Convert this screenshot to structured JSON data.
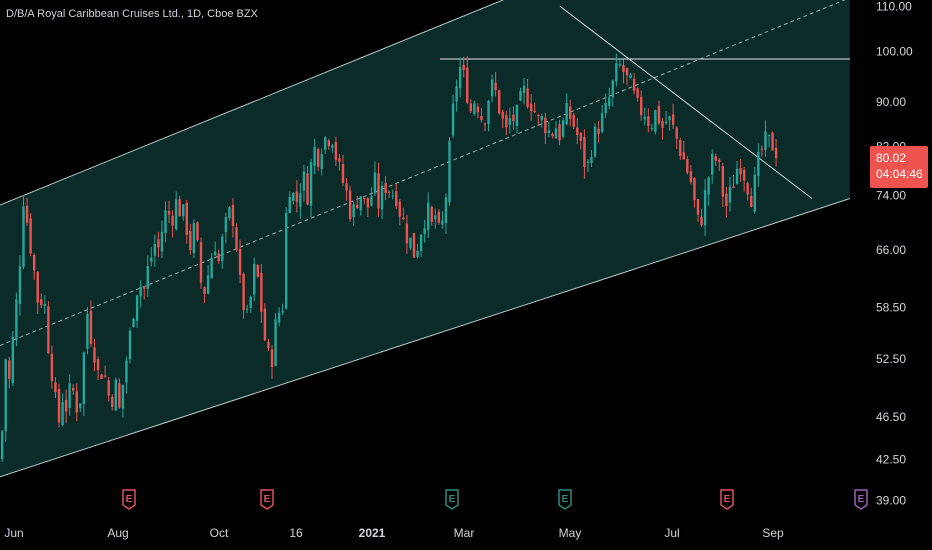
{
  "header": {
    "title": "D/B/A Royal Caribbean Cruises Ltd., 1D, Cboe BZX"
  },
  "price_label": {
    "value": "80.02",
    "countdown": "04:04:46"
  },
  "colors": {
    "up": "#26a69a",
    "down": "#ef5350",
    "channel_fill": "#0d3330",
    "channel_line": "#b2c9c6",
    "background": "#000000",
    "axis_text": "#d1d4dc",
    "earnings_red": "#e0535c",
    "earnings_teal": "#2a8a82",
    "earnings_purple": "#9b5fb6"
  },
  "chart_data": {
    "type": "candlestick",
    "title": "D/B/A Royal Caribbean Cruises Ltd., 1D, Cboe BZX",
    "y_scale": "log",
    "ylim": [
      38.4,
      111
    ],
    "y_ticks": [
      "110.00",
      "100.00",
      "90.00",
      "82.00",
      "74.00",
      "66.00",
      "58.50",
      "52.50",
      "46.50",
      "42.50",
      "39.00"
    ],
    "x_ticks": [
      "Jun",
      "Aug",
      "Oct",
      "16",
      "2021",
      "Mar",
      "May",
      "Jul",
      "Sep"
    ],
    "x_tick_bold": "2021",
    "last_price": 80.02,
    "earnings_markers": [
      {
        "symbol": "E",
        "color": "red"
      },
      {
        "symbol": "E",
        "color": "red"
      },
      {
        "symbol": "E",
        "color": "teal"
      },
      {
        "symbol": "E",
        "color": "teal"
      },
      {
        "symbol": "E",
        "color": "red"
      },
      {
        "symbol": "E",
        "color": "purple"
      }
    ],
    "candle_close_path": [
      [
        0,
        42.5
      ],
      [
        4,
        53
      ],
      [
        8,
        50
      ],
      [
        12,
        55
      ],
      [
        16,
        60
      ],
      [
        20,
        67
      ],
      [
        22,
        74
      ],
      [
        26,
        70
      ],
      [
        30,
        66
      ],
      [
        34,
        62
      ],
      [
        38,
        58
      ],
      [
        42,
        61
      ],
      [
        46,
        55
      ],
      [
        50,
        52
      ],
      [
        54,
        48
      ],
      [
        58,
        46
      ],
      [
        62,
        49
      ],
      [
        66,
        47
      ],
      [
        70,
        50
      ],
      [
        74,
        48
      ],
      [
        78,
        47
      ],
      [
        82,
        52
      ],
      [
        86,
        58
      ],
      [
        90,
        55
      ],
      [
        94,
        53
      ],
      [
        98,
        50
      ],
      [
        102,
        52
      ],
      [
        106,
        49
      ],
      [
        110,
        48
      ],
      [
        114,
        50
      ],
      [
        118,
        47
      ],
      [
        122,
        50
      ],
      [
        126,
        53
      ],
      [
        130,
        56
      ],
      [
        134,
        60
      ],
      [
        138,
        62
      ],
      [
        142,
        60
      ],
      [
        146,
        63
      ],
      [
        150,
        65
      ],
      [
        154,
        67
      ],
      [
        158,
        66
      ],
      [
        162,
        70
      ],
      [
        166,
        72
      ],
      [
        170,
        70
      ],
      [
        174,
        73
      ],
      [
        178,
        72
      ],
      [
        182,
        71
      ],
      [
        186,
        69
      ],
      [
        190,
        66
      ],
      [
        194,
        70
      ],
      [
        198,
        63
      ],
      [
        202,
        60
      ],
      [
        206,
        62
      ],
      [
        210,
        65
      ],
      [
        214,
        67
      ],
      [
        218,
        64
      ],
      [
        222,
        68
      ],
      [
        226,
        70
      ],
      [
        230,
        72
      ],
      [
        234,
        69
      ],
      [
        238,
        62
      ],
      [
        242,
        59
      ],
      [
        246,
        57
      ],
      [
        250,
        60
      ],
      [
        254,
        64
      ],
      [
        258,
        61
      ],
      [
        262,
        56
      ],
      [
        266,
        53
      ],
      [
        270,
        52
      ],
      [
        274,
        56
      ],
      [
        278,
        58
      ],
      [
        282,
        59
      ],
      [
        286,
        75
      ],
      [
        290,
        76
      ],
      [
        294,
        72
      ],
      [
        298,
        75
      ],
      [
        302,
        77
      ],
      [
        306,
        74
      ],
      [
        310,
        79
      ],
      [
        314,
        82
      ],
      [
        318,
        80
      ],
      [
        322,
        84
      ],
      [
        326,
        83
      ],
      [
        330,
        85
      ],
      [
        334,
        81
      ],
      [
        338,
        78
      ],
      [
        342,
        76
      ],
      [
        346,
        74
      ],
      [
        350,
        71
      ],
      [
        354,
        72
      ],
      [
        358,
        75
      ],
      [
        362,
        73
      ],
      [
        366,
        72
      ],
      [
        370,
        74
      ],
      [
        374,
        76
      ],
      [
        378,
        72
      ],
      [
        382,
        75
      ],
      [
        386,
        76
      ],
      [
        390,
        74
      ],
      [
        394,
        75
      ],
      [
        398,
        72
      ],
      [
        402,
        70
      ],
      [
        406,
        68
      ],
      [
        410,
        67
      ],
      [
        414,
        65
      ],
      [
        418,
        68
      ],
      [
        422,
        70
      ],
      [
        426,
        72
      ],
      [
        430,
        69
      ],
      [
        434,
        71
      ],
      [
        438,
        68
      ],
      [
        442,
        70
      ],
      [
        446,
        76
      ],
      [
        450,
        85
      ],
      [
        454,
        92
      ],
      [
        458,
        97
      ],
      [
        462,
        95
      ],
      [
        466,
        92
      ],
      [
        470,
        88
      ],
      [
        474,
        91
      ],
      [
        478,
        89
      ],
      [
        482,
        86
      ],
      [
        486,
        90
      ],
      [
        490,
        93
      ],
      [
        494,
        92
      ],
      [
        498,
        89
      ],
      [
        502,
        86
      ],
      [
        506,
        84
      ],
      [
        510,
        88
      ],
      [
        514,
        86
      ],
      [
        518,
        89
      ],
      [
        522,
        92
      ],
      [
        526,
        91
      ],
      [
        530,
        90
      ],
      [
        534,
        88
      ],
      [
        538,
        86
      ],
      [
        542,
        87
      ],
      [
        546,
        85
      ],
      [
        550,
        84
      ],
      [
        554,
        86
      ],
      [
        558,
        84
      ],
      [
        562,
        86
      ],
      [
        566,
        88
      ],
      [
        570,
        87
      ],
      [
        574,
        85
      ],
      [
        578,
        83
      ],
      [
        582,
        80
      ],
      [
        586,
        78
      ],
      [
        590,
        82
      ],
      [
        594,
        84
      ],
      [
        598,
        86
      ],
      [
        602,
        87
      ],
      [
        606,
        89
      ],
      [
        610,
        92
      ],
      [
        614,
        95
      ],
      [
        618,
        97
      ],
      [
        622,
        96
      ],
      [
        626,
        94
      ],
      [
        630,
        93
      ],
      [
        634,
        90
      ],
      [
        638,
        88
      ],
      [
        642,
        89
      ],
      [
        646,
        87
      ],
      [
        650,
        86
      ],
      [
        654,
        88
      ],
      [
        658,
        87
      ],
      [
        662,
        85
      ],
      [
        666,
        87
      ],
      [
        670,
        86
      ],
      [
        674,
        84
      ],
      [
        678,
        82
      ],
      [
        682,
        80
      ],
      [
        686,
        78
      ],
      [
        690,
        76
      ],
      [
        694,
        72
      ],
      [
        698,
        69
      ],
      [
        702,
        72
      ],
      [
        706,
        76
      ],
      [
        710,
        79
      ],
      [
        714,
        80
      ],
      [
        718,
        78
      ],
      [
        722,
        74
      ],
      [
        726,
        72
      ],
      [
        730,
        75
      ],
      [
        734,
        77
      ],
      [
        738,
        80
      ],
      [
        742,
        78
      ],
      [
        746,
        76
      ],
      [
        750,
        74
      ],
      [
        754,
        76
      ],
      [
        758,
        80
      ],
      [
        762,
        82
      ],
      [
        766,
        83
      ],
      [
        770,
        82
      ],
      [
        774,
        83
      ],
      [
        778,
        80.02
      ]
    ],
    "channel": {
      "upper": [
        [
          0,
          72.5
        ],
        [
          850,
          150
        ]
      ],
      "middle": [
        [
          0,
          54
        ],
        [
          850,
          112
        ]
      ],
      "lower": [
        [
          0,
          41
        ],
        [
          850,
          73.5
        ]
      ]
    },
    "resistance": {
      "value": 98.5,
      "from_x": 440,
      "to_x": 850
    },
    "trendline": {
      "from": [
        560,
        110
      ],
      "to": [
        812,
        73.5
      ]
    }
  }
}
